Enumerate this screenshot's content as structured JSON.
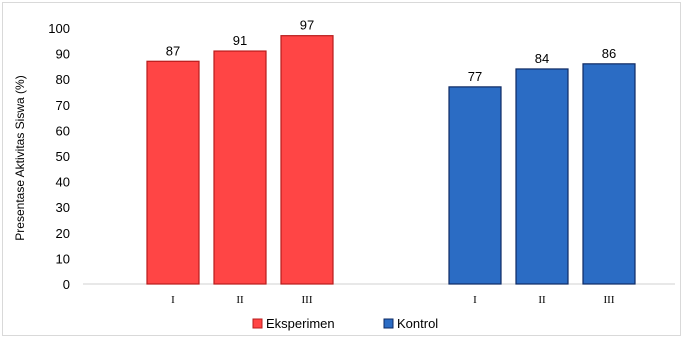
{
  "chart_data": {
    "type": "bar",
    "ylabel": "Presentase Aktivitas Siswa (%)",
    "ylim": [
      0,
      100
    ],
    "yticks": [
      0,
      10,
      20,
      30,
      40,
      50,
      60,
      70,
      80,
      90,
      100
    ],
    "grid": false,
    "legend_position": "bottom",
    "groups": [
      {
        "name": "Eksperimen",
        "color": "#ff4545",
        "border": "#b81c1c",
        "categories": [
          "I",
          "II",
          "III"
        ],
        "values": [
          87,
          91,
          97
        ]
      },
      {
        "name": "Kontrol",
        "color": "#2b6cc4",
        "border": "#0e2a63",
        "categories": [
          "I",
          "II",
          "III"
        ],
        "values": [
          77,
          84,
          86
        ]
      }
    ]
  }
}
